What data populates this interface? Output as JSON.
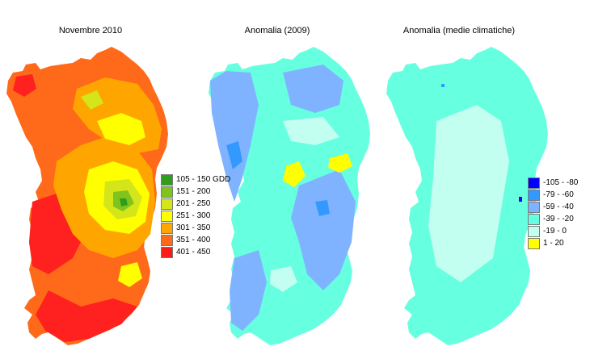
{
  "panels": [
    {
      "title": "Novembre 2010"
    },
    {
      "title": "Anomalia (2009)"
    },
    {
      "title": "Anomalia (medie climatiche)"
    }
  ],
  "legend_gdd": [
    {
      "label": "105 - 150 GDD",
      "color": "#2e9e1c"
    },
    {
      "label": "151 - 200",
      "color": "#7fc41c"
    },
    {
      "label": "201 - 250",
      "color": "#d4e61a"
    },
    {
      "label": "251 - 300",
      "color": "#ffff00"
    },
    {
      "label": "301 - 350",
      "color": "#ffa500"
    },
    {
      "label": "351 - 400",
      "color": "#ff6a1a"
    },
    {
      "label": "401 - 450",
      "color": "#ff1a1a"
    }
  ],
  "legend_anomaly": [
    {
      "label": "-105 - -80",
      "color": "#0000ff"
    },
    {
      "label": "-79 - -60",
      "color": "#3399ff"
    },
    {
      "label": "-59 - -40",
      "color": "#80b3ff"
    },
    {
      "label": "-39 - -20",
      "color": "#66ffe0"
    },
    {
      "label": "-19 - 0",
      "color": "#c2fff0"
    },
    {
      "label": "1 - 20",
      "color": "#ffff00"
    }
  ]
}
